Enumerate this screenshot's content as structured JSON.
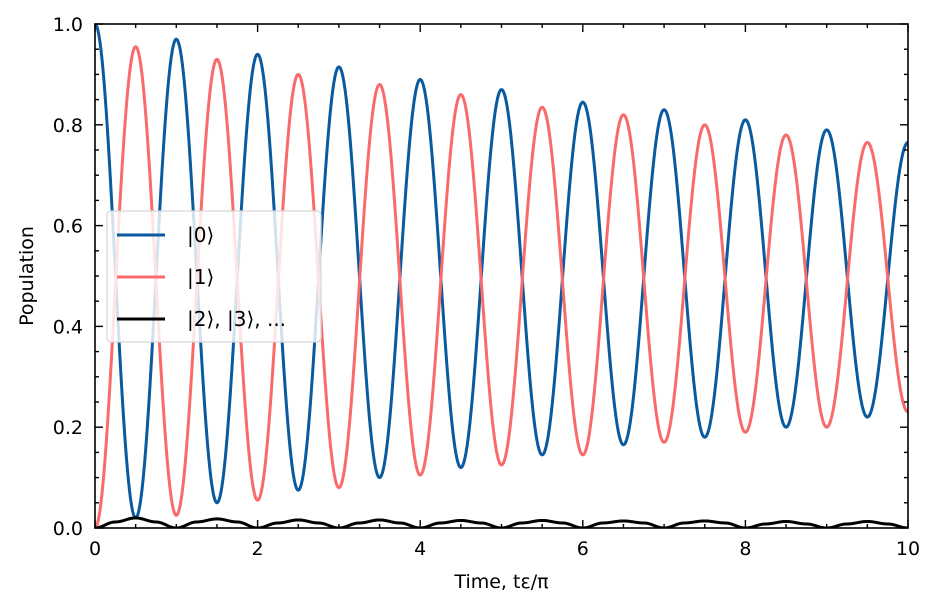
{
  "chart_data": {
    "type": "line",
    "xlabel": "Time, tε/π",
    "ylabel": "Population",
    "xlim": [
      0,
      10
    ],
    "ylim": [
      0,
      1.0
    ],
    "x_ticks": [
      0,
      2,
      4,
      6,
      8,
      10
    ],
    "x_tick_labels": [
      "0",
      "2",
      "4",
      "6",
      "8",
      "10"
    ],
    "y_ticks": [
      0.0,
      0.2,
      0.4,
      0.6,
      0.8,
      1.0
    ],
    "y_tick_labels": [
      "0.0",
      "0.2",
      "0.4",
      "0.6",
      "0.8",
      "1.0"
    ],
    "grid": false,
    "legend_position": "center-left",
    "series": [
      {
        "name": "|0⟩",
        "color": "#0a5aa0",
        "x": [
          0,
          0.5,
          1,
          1.5,
          2,
          2.5,
          3,
          3.5,
          4,
          4.5,
          5,
          5.5,
          6,
          6.5,
          7,
          7.5,
          8,
          8.5,
          9,
          9.5,
          10
        ],
        "y": [
          1.0,
          0.02,
          0.97,
          0.05,
          0.94,
          0.075,
          0.915,
          0.1,
          0.89,
          0.12,
          0.87,
          0.145,
          0.845,
          0.165,
          0.83,
          0.18,
          0.81,
          0.2,
          0.79,
          0.22,
          0.765
        ]
      },
      {
        "name": "|1⟩",
        "color": "#f96b6b",
        "x": [
          0,
          0.5,
          1,
          1.5,
          2,
          2.5,
          3,
          3.5,
          4,
          4.5,
          5,
          5.5,
          6,
          6.5,
          7,
          7.5,
          8,
          8.5,
          9,
          9.5,
          10
        ],
        "y": [
          0.0,
          0.955,
          0.025,
          0.93,
          0.055,
          0.9,
          0.08,
          0.88,
          0.105,
          0.86,
          0.125,
          0.835,
          0.145,
          0.82,
          0.17,
          0.8,
          0.19,
          0.78,
          0.2,
          0.765,
          0.23
        ]
      },
      {
        "name": "|2⟩, |3⟩, ...",
        "color": "#000000",
        "x": [
          0,
          0.25,
          0.5,
          0.75,
          1,
          1.25,
          1.5,
          1.75,
          2,
          2.25,
          2.5,
          2.75,
          3,
          3.25,
          3.5,
          3.75,
          4,
          4.25,
          4.5,
          4.75,
          5,
          5.25,
          5.5,
          5.75,
          6,
          6.25,
          6.5,
          6.75,
          7,
          7.25,
          7.5,
          7.75,
          8,
          8.25,
          8.5,
          8.75,
          9,
          9.25,
          9.5,
          9.75,
          10
        ],
        "y": [
          0.0,
          0.012,
          0.02,
          0.012,
          0.0,
          0.012,
          0.018,
          0.012,
          0.0,
          0.01,
          0.016,
          0.01,
          0.0,
          0.01,
          0.016,
          0.01,
          0.0,
          0.01,
          0.015,
          0.01,
          0.0,
          0.01,
          0.015,
          0.01,
          0.0,
          0.01,
          0.014,
          0.01,
          0.0,
          0.01,
          0.014,
          0.01,
          0.0,
          0.008,
          0.013,
          0.008,
          0.0,
          0.008,
          0.013,
          0.008,
          0.0
        ]
      }
    ]
  }
}
